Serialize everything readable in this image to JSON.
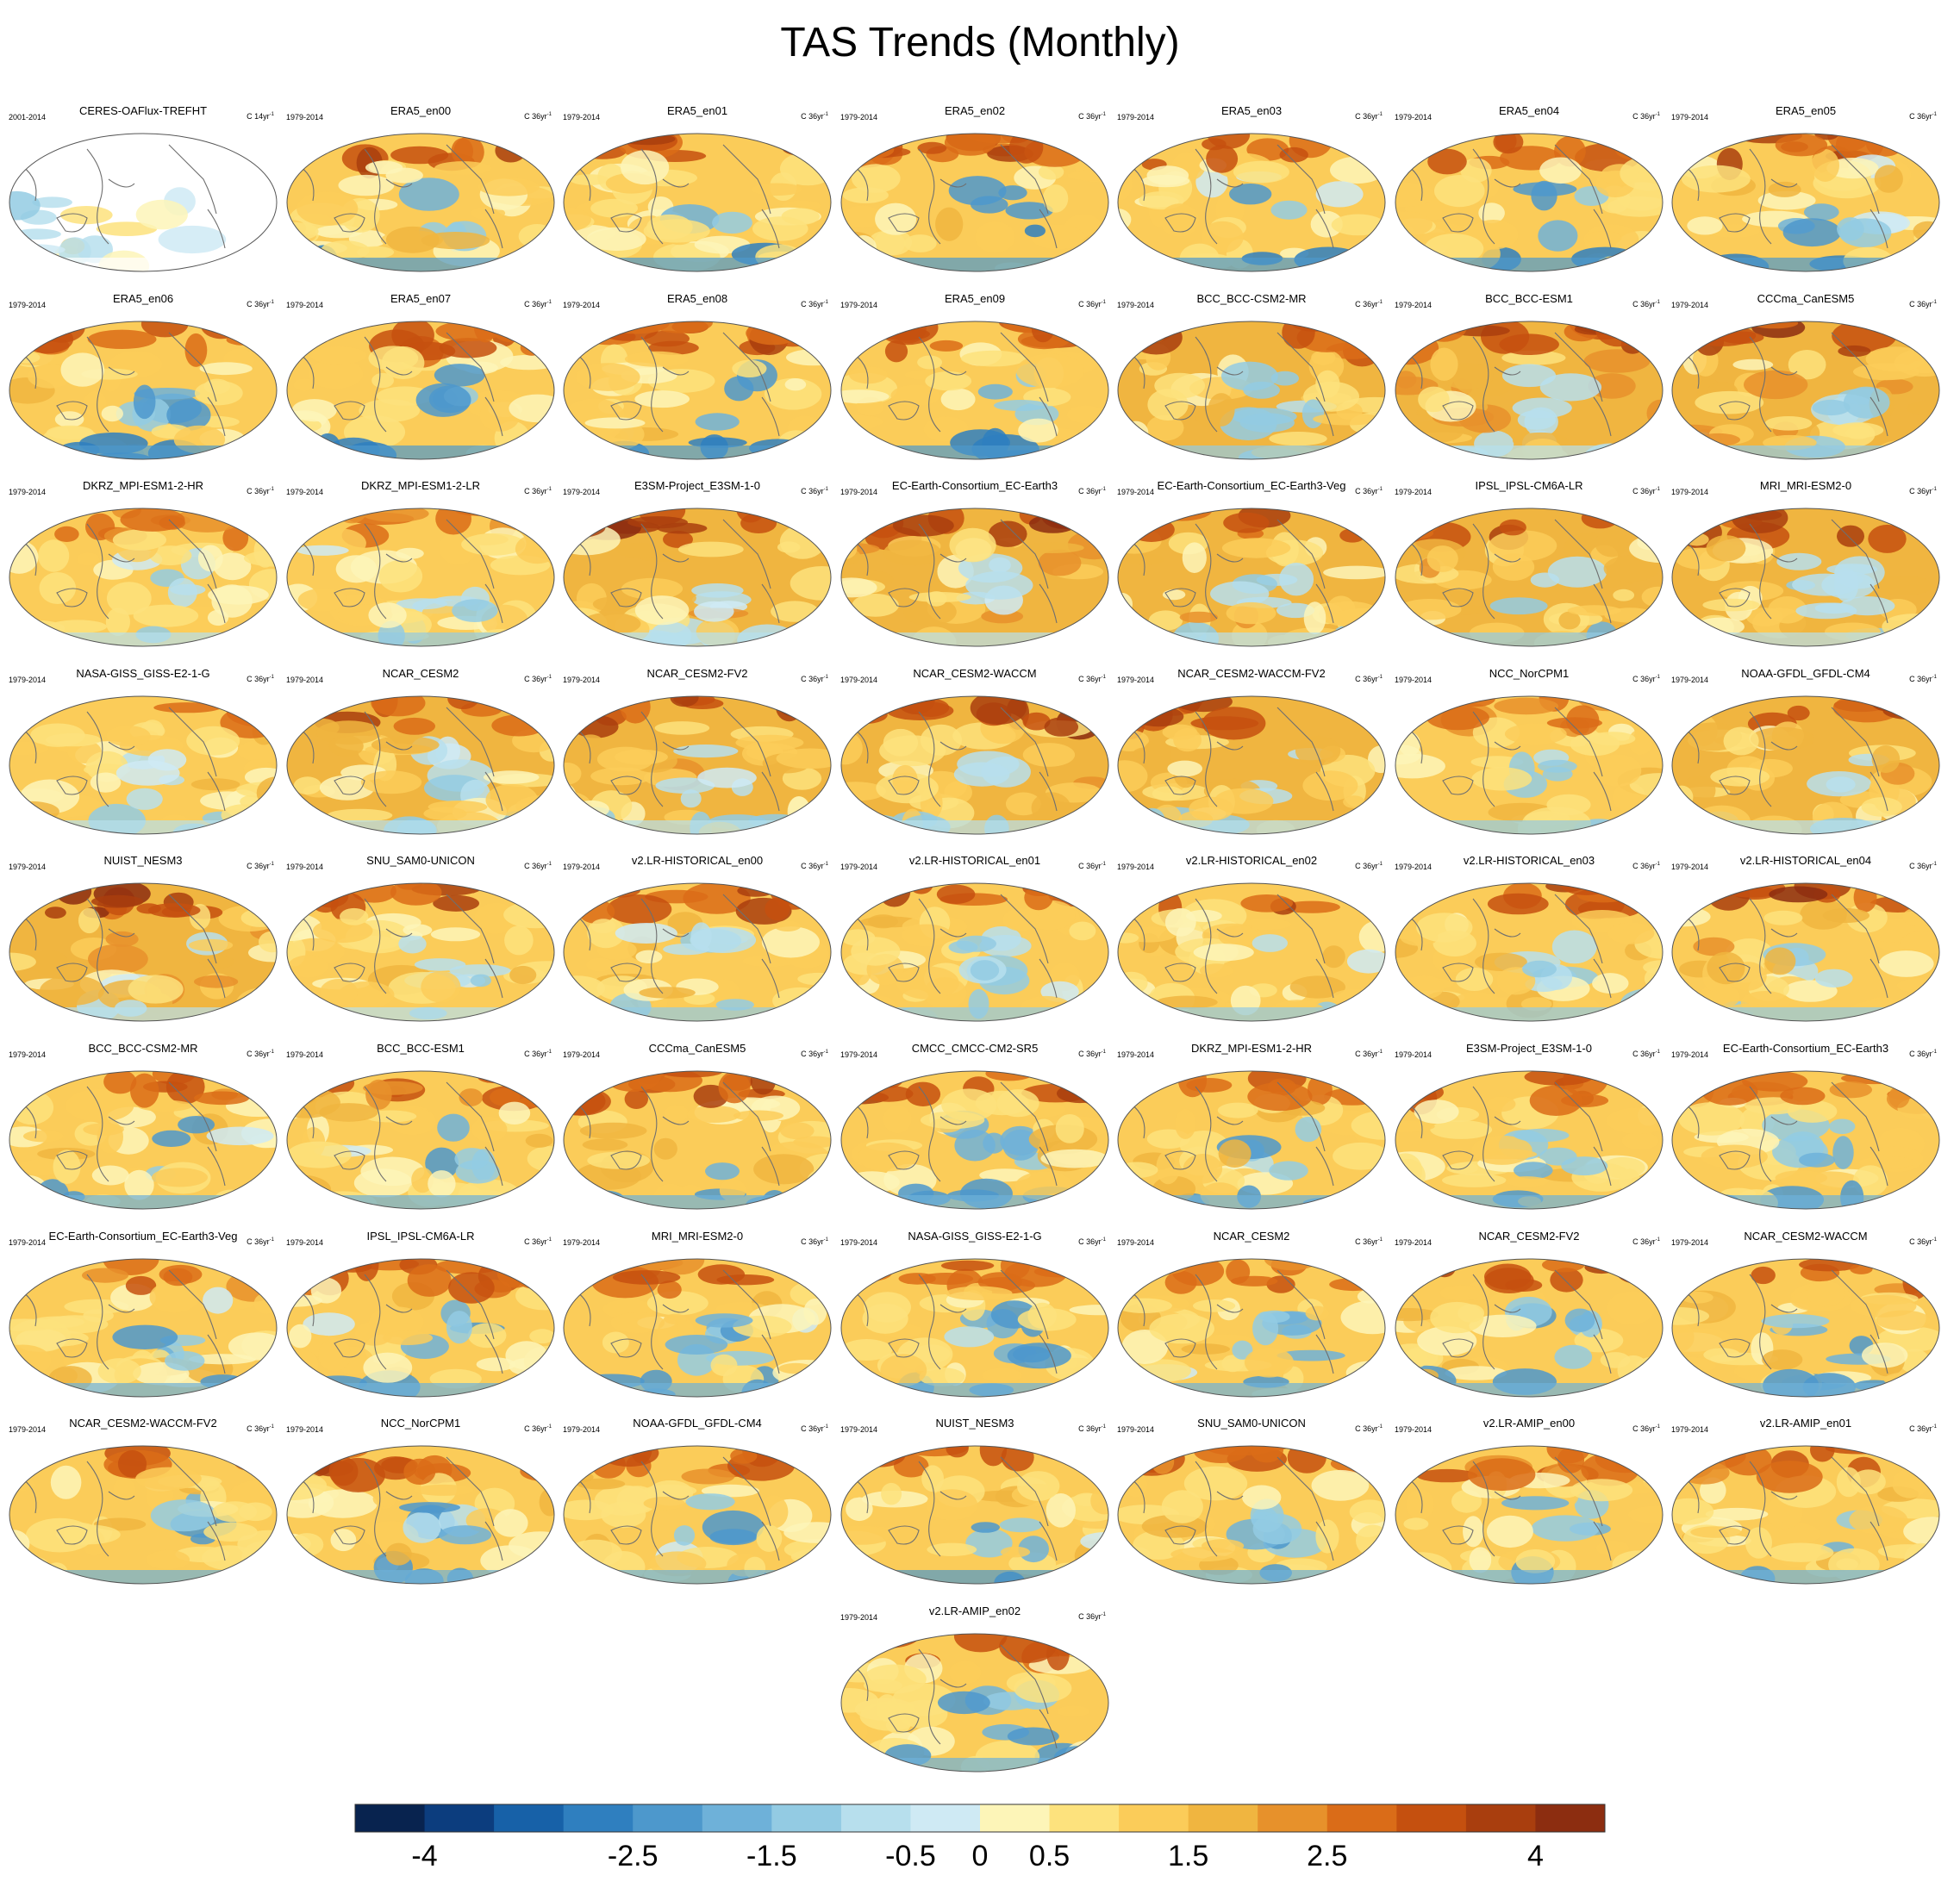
{
  "title": "TAS Trends (Monthly)",
  "chart_data": {
    "type": "heatmap",
    "projection": "Robinson (Pacific-centered) global maps",
    "colorbar": {
      "levels": [
        -4,
        -3.5,
        -3,
        -2.5,
        -2,
        -1.5,
        -1,
        -0.5,
        0,
        0.5,
        1,
        1.5,
        2,
        2.5,
        3,
        3.5,
        4
      ],
      "tick_labels": [
        "-4",
        "-2.5",
        "-1.5",
        "-0.5",
        "0",
        "0.5",
        "1.5",
        "2.5",
        "4"
      ],
      "colors": [
        "#08234f",
        "#0c3d7e",
        "#1761a8",
        "#2f7fbf",
        "#4d98cc",
        "#6eb1d9",
        "#93cbe3",
        "#b7dfed",
        "#cfeaf4",
        "#fdf5b8",
        "#fde27d",
        "#fbcc59",
        "#f0b540",
        "#e7912b",
        "#da6c18",
        "#c5500f",
        "#a93e0e",
        "#8c2d10"
      ]
    },
    "panels": [
      {
        "title": "CERES-OAFlux-TREFHT",
        "years": "2001-2014",
        "units": "C 14yr",
        "sup": "-1",
        "warm": 0.2,
        "arctic": 0.2,
        "cool": 0.3,
        "obs": true
      },
      {
        "title": "ERA5_en00",
        "years": "1979-2014",
        "units": "C 36yr",
        "sup": "-1",
        "warm": 0.55,
        "arctic": 0.85,
        "cool": 0.6
      },
      {
        "title": "ERA5_en01",
        "years": "1979-2014",
        "units": "C 36yr",
        "sup": "-1",
        "warm": 0.55,
        "arctic": 0.85,
        "cool": 0.6
      },
      {
        "title": "ERA5_en02",
        "years": "1979-2014",
        "units": "C 36yr",
        "sup": "-1",
        "warm": 0.55,
        "arctic": 0.85,
        "cool": 0.6
      },
      {
        "title": "ERA5_en03",
        "years": "1979-2014",
        "units": "C 36yr",
        "sup": "-1",
        "warm": 0.55,
        "arctic": 0.85,
        "cool": 0.6
      },
      {
        "title": "ERA5_en04",
        "years": "1979-2014",
        "units": "C 36yr",
        "sup": "-1",
        "warm": 0.55,
        "arctic": 0.85,
        "cool": 0.6
      },
      {
        "title": "ERA5_en05",
        "years": "1979-2014",
        "units": "C 36yr",
        "sup": "-1",
        "warm": 0.55,
        "arctic": 0.85,
        "cool": 0.6
      },
      {
        "title": "ERA5_en06",
        "years": "1979-2014",
        "units": "C 36yr",
        "sup": "-1",
        "warm": 0.55,
        "arctic": 0.85,
        "cool": 0.6
      },
      {
        "title": "ERA5_en07",
        "years": "1979-2014",
        "units": "C 36yr",
        "sup": "-1",
        "warm": 0.55,
        "arctic": 0.85,
        "cool": 0.6
      },
      {
        "title": "ERA5_en08",
        "years": "1979-2014",
        "units": "C 36yr",
        "sup": "-1",
        "warm": 0.55,
        "arctic": 0.85,
        "cool": 0.6
      },
      {
        "title": "ERA5_en09",
        "years": "1979-2014",
        "units": "C 36yr",
        "sup": "-1",
        "warm": 0.55,
        "arctic": 0.85,
        "cool": 0.6
      },
      {
        "title": "BCC_BCC-CSM2-MR",
        "years": "1979-2014",
        "units": "C 36yr",
        "sup": "-1",
        "warm": 0.65,
        "arctic": 0.9,
        "cool": 0.35
      },
      {
        "title": "BCC_BCC-ESM1",
        "years": "1979-2014",
        "units": "C 36yr",
        "sup": "-1",
        "warm": 0.75,
        "arctic": 0.95,
        "cool": 0.2
      },
      {
        "title": "CCCma_CanESM5",
        "years": "1979-2014",
        "units": "C 36yr",
        "sup": "-1",
        "warm": 0.8,
        "arctic": 0.95,
        "cool": 0.3
      },
      {
        "title": "DKRZ_MPI-ESM1-2-HR",
        "years": "1979-2014",
        "units": "C 36yr",
        "sup": "-1",
        "warm": 0.5,
        "arctic": 0.7,
        "cool": 0.25
      },
      {
        "title": "DKRZ_MPI-ESM1-2-LR",
        "years": "1979-2014",
        "units": "C 36yr",
        "sup": "-1",
        "warm": 0.5,
        "arctic": 0.7,
        "cool": 0.3
      },
      {
        "title": "E3SM-Project_E3SM-1-0",
        "years": "1979-2014",
        "units": "C 36yr",
        "sup": "-1",
        "warm": 0.75,
        "arctic": 1.0,
        "cool": 0.15
      },
      {
        "title": "EC-Earth-Consortium_EC-Earth3",
        "years": "1979-2014",
        "units": "C 36yr",
        "sup": "-1",
        "warm": 0.75,
        "arctic": 1.0,
        "cool": 0.15
      },
      {
        "title": "EC-Earth-Consortium_EC-Earth3-Veg",
        "years": "1979-2014",
        "units": "C 36yr",
        "sup": "-1",
        "warm": 0.65,
        "arctic": 0.85,
        "cool": 0.25
      },
      {
        "title": "IPSL_IPSL-CM6A-LR",
        "years": "1979-2014",
        "units": "C 36yr",
        "sup": "-1",
        "warm": 0.65,
        "arctic": 0.85,
        "cool": 0.4
      },
      {
        "title": "MRI_MRI-ESM2-0",
        "years": "1979-2014",
        "units": "C 36yr",
        "sup": "-1",
        "warm": 0.65,
        "arctic": 0.9,
        "cool": 0.25
      },
      {
        "title": "NASA-GISS_GISS-E2-1-G",
        "years": "1979-2014",
        "units": "C 36yr",
        "sup": "-1",
        "warm": 0.6,
        "arctic": 0.8,
        "cool": 0.25
      },
      {
        "title": "NCAR_CESM2",
        "years": "1979-2014",
        "units": "C 36yr",
        "sup": "-1",
        "warm": 0.65,
        "arctic": 0.85,
        "cool": 0.25
      },
      {
        "title": "NCAR_CESM2-FV2",
        "years": "1979-2014",
        "units": "C 36yr",
        "sup": "-1",
        "warm": 0.65,
        "arctic": 0.95,
        "cool": 0.25
      },
      {
        "title": "NCAR_CESM2-WACCM",
        "years": "1979-2014",
        "units": "C 36yr",
        "sup": "-1",
        "warm": 0.7,
        "arctic": 1.0,
        "cool": 0.25
      },
      {
        "title": "NCAR_CESM2-WACCM-FV2",
        "years": "1979-2014",
        "units": "C 36yr",
        "sup": "-1",
        "warm": 0.65,
        "arctic": 0.9,
        "cool": 0.25
      },
      {
        "title": "NCC_NorCPM1",
        "years": "1979-2014",
        "units": "C 36yr",
        "sup": "-1",
        "warm": 0.5,
        "arctic": 0.65,
        "cool": 0.35
      },
      {
        "title": "NOAA-GFDL_GFDL-CM4",
        "years": "1979-2014",
        "units": "C 36yr",
        "sup": "-1",
        "warm": 0.65,
        "arctic": 0.9,
        "cool": 0.25
      },
      {
        "title": "NUIST_NESM3",
        "years": "1979-2014",
        "units": "C 36yr",
        "sup": "-1",
        "warm": 0.7,
        "arctic": 1.0,
        "cool": 0.2
      },
      {
        "title": "SNU_SAM0-UNICON",
        "years": "1979-2014",
        "units": "C 36yr",
        "sup": "-1",
        "warm": 0.6,
        "arctic": 0.9,
        "cool": 0.25
      },
      {
        "title": "v2.LR-HISTORICAL_en00",
        "years": "1979-2014",
        "units": "C 36yr",
        "sup": "-1",
        "warm": 0.6,
        "arctic": 0.9,
        "cool": 0.3
      },
      {
        "title": "v2.LR-HISTORICAL_en01",
        "years": "1979-2014",
        "units": "C 36yr",
        "sup": "-1",
        "warm": 0.6,
        "arctic": 0.9,
        "cool": 0.3
      },
      {
        "title": "v2.LR-HISTORICAL_en02",
        "years": "1979-2014",
        "units": "C 36yr",
        "sup": "-1",
        "warm": 0.6,
        "arctic": 0.9,
        "cool": 0.3
      },
      {
        "title": "v2.LR-HISTORICAL_en03",
        "years": "1979-2014",
        "units": "C 36yr",
        "sup": "-1",
        "warm": 0.6,
        "arctic": 0.9,
        "cool": 0.3
      },
      {
        "title": "v2.LR-HISTORICAL_en04",
        "years": "1979-2014",
        "units": "C 36yr",
        "sup": "-1",
        "warm": 0.6,
        "arctic": 0.95,
        "cool": 0.35
      },
      {
        "title": "BCC_BCC-CSM2-MR",
        "years": "1979-2014",
        "units": "C 36yr",
        "sup": "-1",
        "warm": 0.55,
        "arctic": 0.75,
        "cool": 0.55
      },
      {
        "title": "BCC_BCC-ESM1",
        "years": "1979-2014",
        "units": "C 36yr",
        "sup": "-1",
        "warm": 0.55,
        "arctic": 0.8,
        "cool": 0.55
      },
      {
        "title": "CCCma_CanESM5",
        "years": "1979-2014",
        "units": "C 36yr",
        "sup": "-1",
        "warm": 0.6,
        "arctic": 0.85,
        "cool": 0.55
      },
      {
        "title": "CMCC_CMCC-CM2-SR5",
        "years": "1979-2014",
        "units": "C 36yr",
        "sup": "-1",
        "warm": 0.6,
        "arctic": 0.85,
        "cool": 0.55
      },
      {
        "title": "DKRZ_MPI-ESM1-2-HR",
        "years": "1979-2014",
        "units": "C 36yr",
        "sup": "-1",
        "warm": 0.6,
        "arctic": 0.8,
        "cool": 0.55
      },
      {
        "title": "E3SM-Project_E3SM-1-0",
        "years": "1979-2014",
        "units": "C 36yr",
        "sup": "-1",
        "warm": 0.6,
        "arctic": 0.85,
        "cool": 0.55
      },
      {
        "title": "EC-Earth-Consortium_EC-Earth3",
        "years": "1979-2014",
        "units": "C 36yr",
        "sup": "-1",
        "warm": 0.55,
        "arctic": 0.75,
        "cool": 0.55
      },
      {
        "title": "EC-Earth-Consortium_EC-Earth3-Veg",
        "years": "1979-2014",
        "units": "C 36yr",
        "sup": "-1",
        "warm": 0.55,
        "arctic": 0.75,
        "cool": 0.55
      },
      {
        "title": "IPSL_IPSL-CM6A-LR",
        "years": "1979-2014",
        "units": "C 36yr",
        "sup": "-1",
        "warm": 0.6,
        "arctic": 0.85,
        "cool": 0.55
      },
      {
        "title": "MRI_MRI-ESM2-0",
        "years": "1979-2014",
        "units": "C 36yr",
        "sup": "-1",
        "warm": 0.55,
        "arctic": 0.75,
        "cool": 0.55
      },
      {
        "title": "NASA-GISS_GISS-E2-1-G",
        "years": "1979-2014",
        "units": "C 36yr",
        "sup": "-1",
        "warm": 0.55,
        "arctic": 0.75,
        "cool": 0.55
      },
      {
        "title": "NCAR_CESM2",
        "years": "1979-2014",
        "units": "C 36yr",
        "sup": "-1",
        "warm": 0.55,
        "arctic": 0.75,
        "cool": 0.55
      },
      {
        "title": "NCAR_CESM2-FV2",
        "years": "1979-2014",
        "units": "C 36yr",
        "sup": "-1",
        "warm": 0.6,
        "arctic": 0.9,
        "cool": 0.55
      },
      {
        "title": "NCAR_CESM2-WACCM",
        "years": "1979-2014",
        "units": "C 36yr",
        "sup": "-1",
        "warm": 0.55,
        "arctic": 0.8,
        "cool": 0.55
      },
      {
        "title": "NCAR_CESM2-WACCM-FV2",
        "years": "1979-2014",
        "units": "C 36yr",
        "sup": "-1",
        "warm": 0.55,
        "arctic": 0.8,
        "cool": 0.55
      },
      {
        "title": "NCC_NorCPM1",
        "years": "1979-2014",
        "units": "C 36yr",
        "sup": "-1",
        "warm": 0.6,
        "arctic": 0.85,
        "cool": 0.55
      },
      {
        "title": "NOAA-GFDL_GFDL-CM4",
        "years": "1979-2014",
        "units": "C 36yr",
        "sup": "-1",
        "warm": 0.55,
        "arctic": 0.8,
        "cool": 0.55
      },
      {
        "title": "NUIST_NESM3",
        "years": "1979-2014",
        "units": "C 36yr",
        "sup": "-1",
        "warm": 0.55,
        "arctic": 0.8,
        "cool": 0.6
      },
      {
        "title": "SNU_SAM0-UNICON",
        "years": "1979-2014",
        "units": "C 36yr",
        "sup": "-1",
        "warm": 0.55,
        "arctic": 0.8,
        "cool": 0.55
      },
      {
        "title": "v2.LR-AMIP_en00",
        "years": "1979-2014",
        "units": "C 36yr",
        "sup": "-1",
        "warm": 0.55,
        "arctic": 0.8,
        "cool": 0.55
      },
      {
        "title": "v2.LR-AMIP_en01",
        "years": "1979-2014",
        "units": "C 36yr",
        "sup": "-1",
        "warm": 0.55,
        "arctic": 0.8,
        "cool": 0.55
      },
      {
        "title": "v2.LR-AMIP_en02",
        "years": "1979-2014",
        "units": "C 36yr",
        "sup": "-1",
        "warm": 0.55,
        "arctic": 0.8,
        "cool": 0.55
      }
    ]
  }
}
